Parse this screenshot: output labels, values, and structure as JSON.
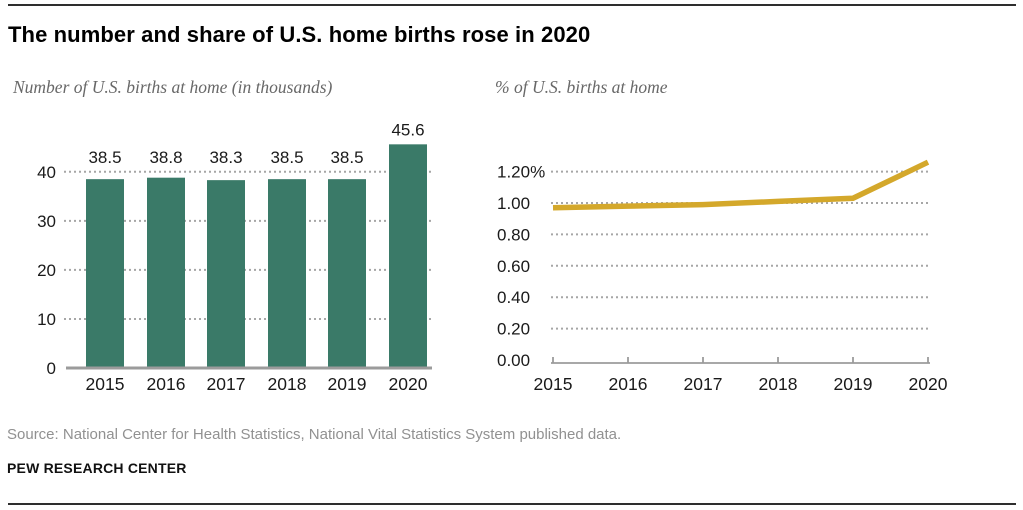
{
  "header": {
    "title": "The number and share of U.S. home births rose in 2020"
  },
  "chart_data": [
    {
      "type": "bar",
      "title": "Number of U.S. births at home (in thousands)",
      "categories": [
        "2015",
        "2016",
        "2017",
        "2018",
        "2019",
        "2020"
      ],
      "values": [
        38.5,
        38.8,
        38.3,
        38.5,
        38.5,
        45.6
      ],
      "data_labels": [
        "38.5",
        "38.8",
        "38.3",
        "38.5",
        "38.5",
        "45.6"
      ],
      "yticks": [
        0,
        10,
        20,
        30,
        40
      ],
      "ytick_labels": [
        "0",
        "10",
        "20",
        "30",
        "40"
      ],
      "ylim": [
        0,
        47
      ],
      "grid": "dotted-horizontal",
      "legend": "none"
    },
    {
      "type": "line",
      "title": "% of U.S. births at home",
      "categories": [
        "2015",
        "2016",
        "2017",
        "2018",
        "2019",
        "2020"
      ],
      "values": [
        0.97,
        0.98,
        0.99,
        1.01,
        1.03,
        1.26
      ],
      "yticks": [
        0,
        0.2,
        0.4,
        0.6,
        0.8,
        1.0,
        1.2
      ],
      "ytick_labels": [
        "0.00",
        "0.20",
        "0.40",
        "0.60",
        "0.80",
        "1.00",
        "1.20%"
      ],
      "ylim": [
        0,
        1.28
      ],
      "grid": "dotted-horizontal",
      "legend": "none"
    }
  ],
  "footer": {
    "source": "Source: National Center for Health Statistics, National Vital Statistics System published data.",
    "brand": "PEW RESEARCH CENTER"
  },
  "colors": {
    "bar": "#3a7a68",
    "line": "#d4a82b",
    "grid": "#a6a6a6",
    "axis": "#9b9b9b",
    "tick_text": "#1a1a1a",
    "data_label_text": "#1a1a1a",
    "subtitle_text": "#686868",
    "source_text": "#919191",
    "border": "#2e2e2e"
  }
}
